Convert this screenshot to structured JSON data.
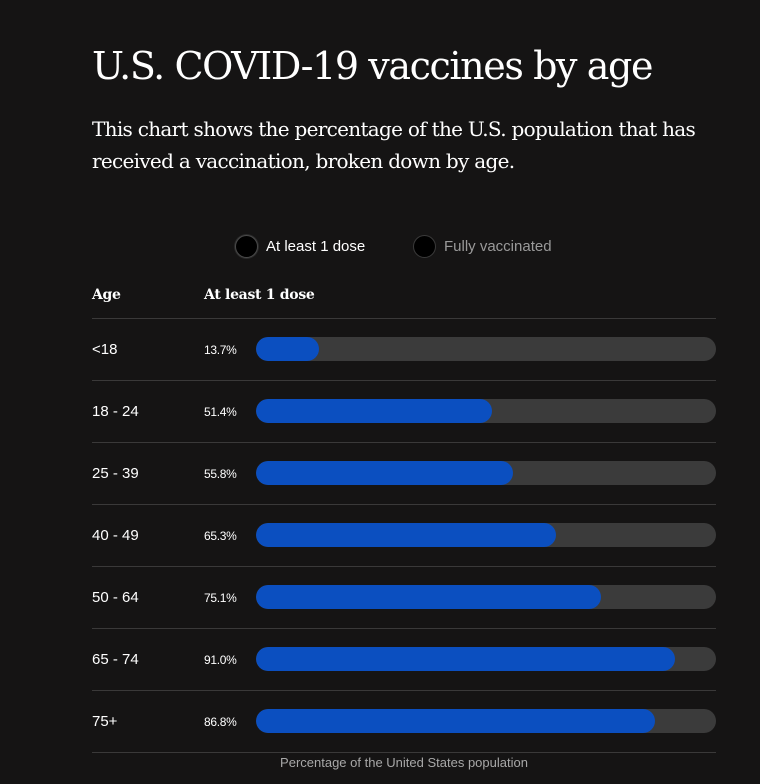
{
  "header": {
    "title": "U.S. COVID-19 vaccines by age",
    "subtitle": "This chart shows the percentage of the U.S. population that has received a vaccination, broken down by age."
  },
  "legend": {
    "items": [
      {
        "label": "At least 1 dose",
        "active": true
      },
      {
        "label": "Fully vaccinated",
        "active": false
      }
    ]
  },
  "table": {
    "age_header": "Age",
    "metric_header": "At least 1 dose",
    "footnote": "Percentage of the United States population"
  },
  "colors": {
    "background": "#151414",
    "bar_fill": "#0b4fc0",
    "bar_track": "#3b3b3b",
    "divider": "#3a3939"
  },
  "chart_data": {
    "type": "bar",
    "orientation": "horizontal",
    "title": "U.S. COVID-19 vaccines by age",
    "subtitle": "This chart shows the percentage of the U.S. population that has received a vaccination, broken down by age.",
    "xlabel": "Percentage of the United States population",
    "ylabel": "Age",
    "xlim": [
      0,
      100
    ],
    "grid": false,
    "legend_position": "top-center",
    "categories": [
      "<18",
      "18 - 24",
      "25 - 39",
      "40 - 49",
      "50 - 64",
      "65 - 74",
      "75+"
    ],
    "series": [
      {
        "name": "At least 1 dose",
        "values": [
          13.7,
          51.4,
          55.8,
          65.3,
          75.1,
          91.0,
          86.8
        ],
        "labels": [
          "13.7%",
          "51.4%",
          "55.8%",
          "65.3%",
          "75.1%",
          "91.0%",
          "86.8%"
        ]
      }
    ]
  }
}
